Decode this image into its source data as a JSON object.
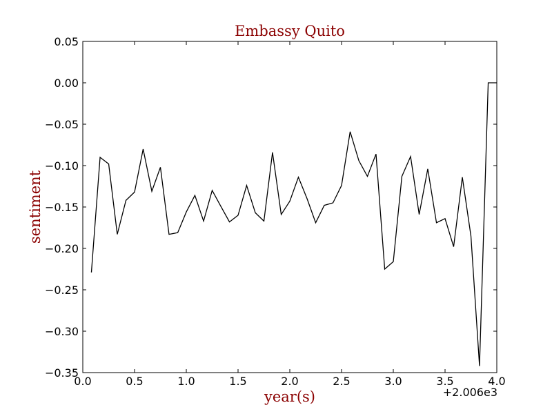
{
  "chart_data": {
    "type": "line",
    "title": "Embassy Quito",
    "xlabel": "year(s)",
    "ylabel": "sentiment",
    "x_offset_label": "+2.006e3",
    "xlim": [
      0.0,
      4.0
    ],
    "ylim": [
      -0.35,
      0.05
    ],
    "x_ticks": [
      "0.0",
      "0.5",
      "1.0",
      "1.5",
      "2.0",
      "2.5",
      "3.0",
      "3.5",
      "4.0"
    ],
    "y_ticks": [
      "0.05",
      "0.00",
      "−0.05",
      "−0.10",
      "−0.15",
      "−0.20",
      "−0.25",
      "−0.30",
      "−0.35"
    ],
    "grid": false,
    "colors": {
      "line": "#000000",
      "title": "#8b0000",
      "labels": "#8b0000"
    },
    "series": [
      {
        "x": [
          0.083,
          0.167,
          0.25,
          0.333,
          0.417,
          0.5,
          0.583,
          0.667,
          0.75,
          0.833,
          0.917,
          1.0,
          1.083,
          1.167,
          1.25,
          1.333,
          1.417,
          1.5,
          1.583,
          1.667,
          1.75,
          1.833,
          1.917,
          2.0,
          2.083,
          2.167,
          2.25,
          2.333,
          2.417,
          2.5,
          2.583,
          2.667,
          2.75,
          2.833,
          2.917,
          3.0,
          3.083,
          3.167,
          3.25,
          3.333,
          3.417,
          3.5,
          3.583,
          3.667,
          3.75,
          3.833,
          3.917,
          4.0
        ],
        "y": [
          -0.229,
          -0.09,
          -0.098,
          -0.183,
          -0.142,
          -0.132,
          -0.08,
          -0.131,
          -0.102,
          -0.183,
          -0.181,
          -0.156,
          -0.136,
          -0.167,
          -0.13,
          -0.149,
          -0.168,
          -0.16,
          -0.124,
          -0.157,
          -0.167,
          -0.084,
          -0.159,
          -0.143,
          -0.114,
          -0.14,
          -0.169,
          -0.148,
          -0.145,
          -0.124,
          -0.059,
          -0.094,
          -0.113,
          -0.086,
          -0.225,
          -0.216,
          -0.113,
          -0.089,
          -0.159,
          -0.104,
          -0.169,
          -0.164,
          -0.198,
          -0.114,
          -0.185,
          -0.342,
          0.0,
          0.0
        ]
      }
    ]
  }
}
